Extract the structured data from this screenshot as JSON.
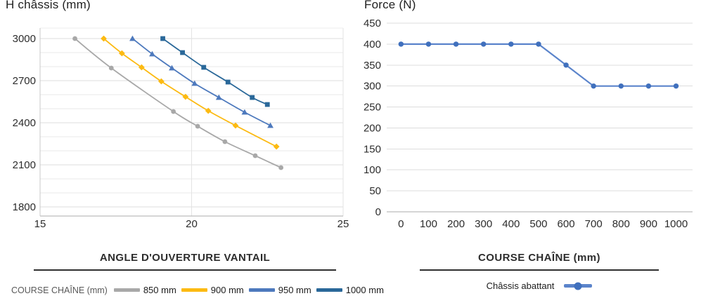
{
  "chart_data": [
    {
      "type": "line",
      "title": "H châssis (mm)",
      "xlabel": "ANGLE D'OUVERTURE VANTAIL",
      "ylabel": "H châssis (mm)",
      "legend_title": "COURSE CHAÎNE (mm)",
      "legend_position": "bottom",
      "grid": "horizontal-minor",
      "xlim": [
        15,
        25
      ],
      "ylim": [
        1735,
        3075
      ],
      "xticks": [
        15,
        20,
        25
      ],
      "yticks": [
        1800,
        2100,
        2400,
        2700,
        3000
      ],
      "minor_ygrid_step": 100,
      "series": [
        {
          "name": "850 mm",
          "color": "#a8a8a8",
          "marker": "circle",
          "points": [
            [
              16.15,
              3000
            ],
            [
              17.35,
              2790
            ],
            [
              19.4,
              2480
            ],
            [
              20.2,
              2375
            ],
            [
              21.1,
              2265
            ],
            [
              22.1,
              2165
            ],
            [
              22.95,
              2080
            ]
          ]
        },
        {
          "name": "900 mm",
          "color": "#fcba12",
          "marker": "diamond",
          "points": [
            [
              17.1,
              3000
            ],
            [
              17.7,
              2895
            ],
            [
              18.35,
              2795
            ],
            [
              19.0,
              2695
            ],
            [
              19.8,
              2585
            ],
            [
              20.55,
              2485
            ],
            [
              21.45,
              2380
            ],
            [
              22.8,
              2230
            ]
          ]
        },
        {
          "name": "950 mm",
          "color": "#4d79bd",
          "marker": "triangle",
          "points": [
            [
              18.05,
              3000
            ],
            [
              18.7,
              2890
            ],
            [
              19.35,
              2790
            ],
            [
              20.1,
              2680
            ],
            [
              20.9,
              2580
            ],
            [
              21.75,
              2475
            ],
            [
              22.6,
              2380
            ]
          ]
        },
        {
          "name": "1000 mm",
          "color": "#2a6899",
          "marker": "square",
          "points": [
            [
              19.05,
              3000
            ],
            [
              19.7,
              2900
            ],
            [
              20.4,
              2795
            ],
            [
              21.2,
              2690
            ],
            [
              22.0,
              2580
            ],
            [
              22.5,
              2530
            ]
          ]
        }
      ]
    },
    {
      "type": "line",
      "title": "Force (N)",
      "xlabel": "COURSE CHAÎNE (mm)",
      "ylabel": "Force (N)",
      "legend_position": "bottom",
      "grid": "horizontal",
      "xlim": [
        -52,
        1060
      ],
      "ylim": [
        0,
        450
      ],
      "xticks": [
        0,
        100,
        200,
        300,
        400,
        500,
        600,
        700,
        800,
        900,
        1000
      ],
      "yticks": [
        0,
        50,
        100,
        150,
        200,
        250,
        300,
        350,
        400,
        450
      ],
      "series": [
        {
          "name": "Châssis abattant",
          "color": "#5b84cb",
          "marker_color": "#4070bd",
          "marker": "circle",
          "x": [
            0,
            100,
            200,
            300,
            400,
            500,
            600,
            700,
            800,
            900,
            1000
          ],
          "values": [
            400,
            400,
            400,
            400,
            400,
            400,
            350,
            300,
            300,
            300,
            300
          ]
        }
      ]
    }
  ]
}
